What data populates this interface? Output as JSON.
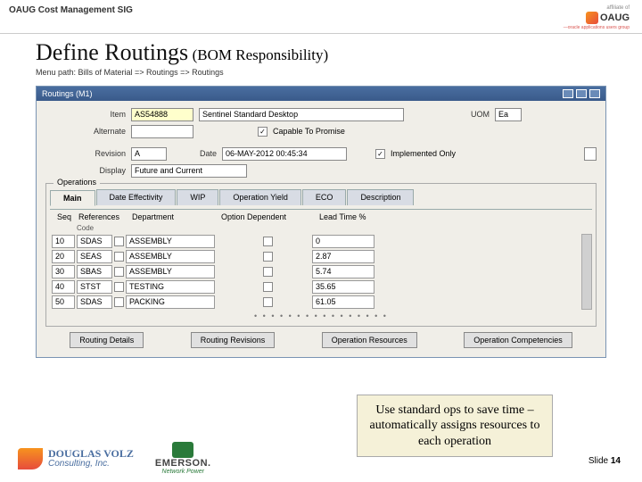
{
  "header": {
    "sig": "OAUG Cost Management SIG",
    "affiliate": "affiliate of",
    "logo_text": "OAUG",
    "logo_tagline": "—oracle applications users group"
  },
  "title": {
    "main": "Define Routings",
    "sub": "(BOM Responsibility)",
    "menu_path": "Menu path:  Bills of Material => Routings => Routings"
  },
  "window": {
    "title": "Routings (M1)",
    "labels": {
      "item": "Item",
      "alternate": "Alternate",
      "revision": "Revision",
      "date": "Date",
      "display": "Display",
      "uom": "UOM",
      "ctp": "Capable To Promise",
      "impl": "Implemented Only",
      "ops": "Operations",
      "refs": "References",
      "seq": "Seq",
      "code": "Code",
      "dept": "Department",
      "optdept": "Option Dependent",
      "leadtime": "Lead Time %"
    },
    "fields": {
      "item_code": "AS54888",
      "item_desc": "Sentinel Standard Desktop",
      "uom": "Ea",
      "revision": "A",
      "date": "06-MAY-2012 00:45:34",
      "display": "Future and Current"
    },
    "checks": {
      "ctp": true,
      "impl": true
    },
    "tabs": [
      "Main",
      "Date Effectivity",
      "WIP",
      "Operation Yield",
      "ECO",
      "Description"
    ],
    "grid_rows": [
      {
        "seq": "10",
        "code": "SDAS",
        "dept": "ASSEMBLY",
        "opt": false,
        "lead": "0"
      },
      {
        "seq": "20",
        "code": "SEAS",
        "dept": "ASSEMBLY",
        "opt": false,
        "lead": "2.87"
      },
      {
        "seq": "30",
        "code": "SBAS",
        "dept": "ASSEMBLY",
        "opt": false,
        "lead": "5.74"
      },
      {
        "seq": "40",
        "code": "STST",
        "dept": "TESTING",
        "opt": false,
        "lead": "35.65"
      },
      {
        "seq": "50",
        "code": "SDAS",
        "dept": "PACKING",
        "opt": false,
        "lead": "61.05"
      }
    ],
    "buttons": {
      "details": "Routing Details",
      "revisions": "Routing Revisions",
      "resources": "Operation Resources",
      "competencies": "Operation Competencies"
    }
  },
  "callout": "Use standard ops to save time – automatically assigns resources to each operation",
  "footer": {
    "dv_name": "DOUGLAS VOLZ",
    "dv_sub": "Consulting, Inc.",
    "emerson": "EMERSON.",
    "emerson_sub": "Network Power",
    "slide": "Slide ",
    "slide_num": "14"
  },
  "colors": {
    "titlebar": "#4a6ea0",
    "callout_bg": "#f5f1d8",
    "form_bg": "#f0eee8"
  }
}
